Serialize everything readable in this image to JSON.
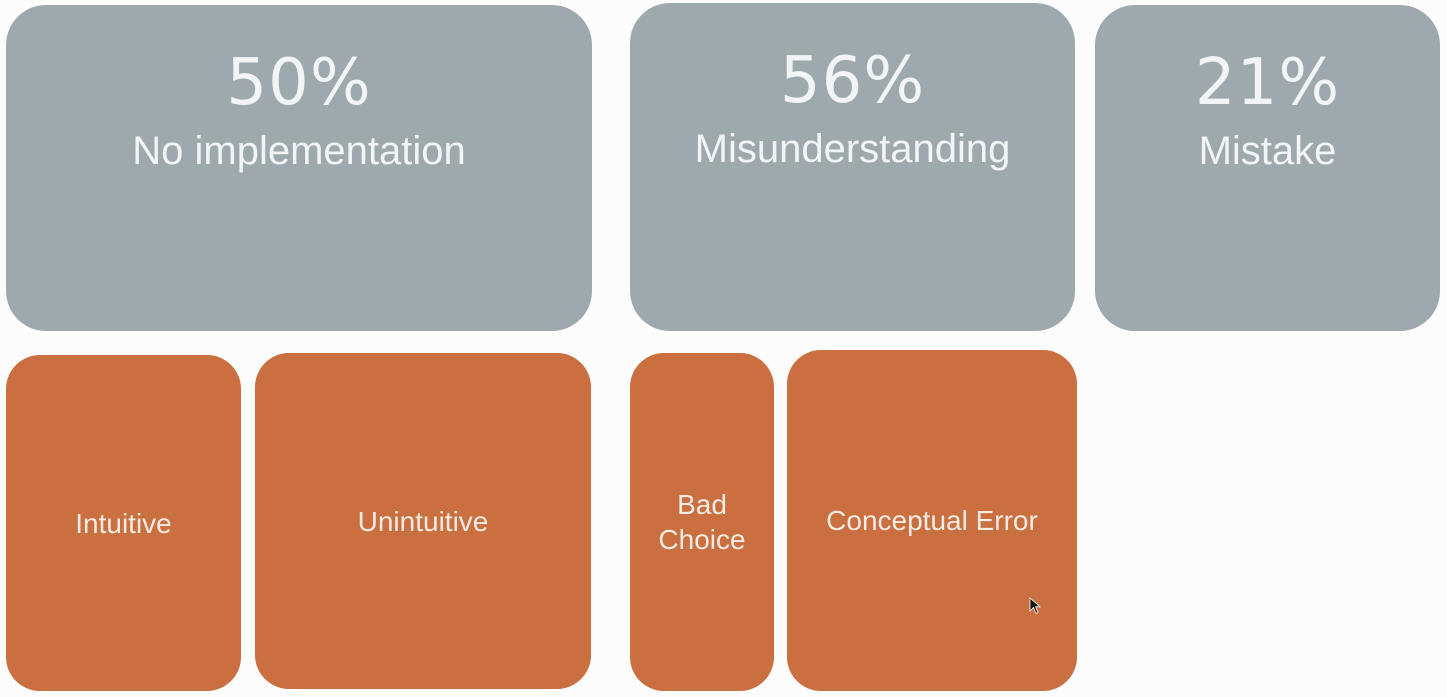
{
  "categories": [
    {
      "percent": "50%",
      "label": "No implementation"
    },
    {
      "percent": "56%",
      "label": "Misunderstanding"
    },
    {
      "percent": "21%",
      "label": "Mistake"
    }
  ],
  "subcategories": {
    "intuitive": "Intuitive",
    "unintuitive": "Unintuitive",
    "bad_choice_line1": "Bad",
    "bad_choice_line2": "Choice",
    "conceptual_error": "Conceptual Error"
  },
  "colors": {
    "category_fill": "#9ea9ae",
    "subcategory_fill": "#c96f40",
    "text": "#f2f4f5",
    "background": "#fcfcfc"
  },
  "icons": {
    "cursor": "mouse-pointer-icon"
  }
}
